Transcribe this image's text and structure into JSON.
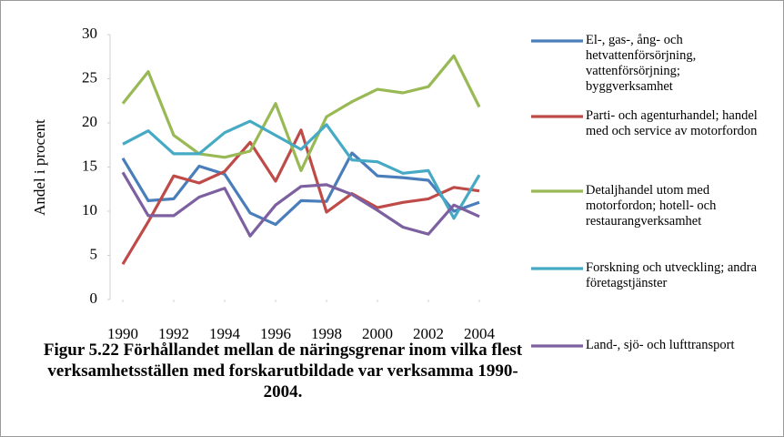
{
  "chart_data": {
    "type": "line",
    "title": "Figur 5.22 Förhållandet mellan de näringsgrenar inom vilka flest verksamhetsställen med forskarutbildade var verksamma 1990-2004.",
    "y_label": "Andel i procent",
    "x": [
      1990,
      1991,
      1992,
      1993,
      1994,
      1995,
      1996,
      1997,
      1998,
      1999,
      2000,
      2001,
      2002,
      2003,
      2004
    ],
    "xlim": [
      1989.5,
      2004.5
    ],
    "xticks": [
      1990,
      1992,
      1994,
      1996,
      1998,
      2000,
      2002,
      2004
    ],
    "ylim": [
      0,
      30
    ],
    "yticks": [
      0,
      5,
      10,
      15,
      20,
      25,
      30
    ],
    "grid": false,
    "legend": "right",
    "series": [
      {
        "name": "El-, gas-, ång- och hetvattenförsörjning, vattenförsörjning; byggverksamhet",
        "color": "#4a7ebb",
        "values": [
          16,
          11.2,
          11.4,
          15.1,
          14.2,
          9.8,
          8.5,
          11.2,
          11.1,
          16.6,
          14,
          13.8,
          13.5,
          10,
          11
        ]
      },
      {
        "name": "Parti- och agenturhandel; handel med och service av motorfordon",
        "color": "#be4b48",
        "values": [
          4,
          8.8,
          14,
          13.2,
          14.5,
          17.8,
          13.4,
          19.2,
          9.9,
          12,
          10.4,
          11,
          11.4,
          12.7,
          12.3
        ]
      },
      {
        "name": "Detaljhandel utom med motorfordon; hotell- och restaurangverksamhet",
        "color": "#98b954",
        "values": [
          22.2,
          25.8,
          18.6,
          16.5,
          16.1,
          16.8,
          22.2,
          14.6,
          20.7,
          22.4,
          23.8,
          23.4,
          24.1,
          27.6,
          21.8
        ]
      },
      {
        "name": "Forskning och utveckling; andra företagstjänster",
        "color": "#46aac5",
        "values": [
          17.6,
          19.1,
          16.5,
          16.5,
          18.9,
          20.2,
          18.6,
          17,
          19.8,
          15.8,
          15.6,
          14.3,
          14.6,
          9.2,
          14.1
        ]
      },
      {
        "name": "Land-, sjö- och lufttransport",
        "color": "#7d60a0",
        "values": [
          14.4,
          9.5,
          9.5,
          11.6,
          12.6,
          7.2,
          10.7,
          12.8,
          13,
          11.9,
          10.1,
          8.2,
          7.4,
          10.7,
          9.4
        ]
      }
    ]
  }
}
